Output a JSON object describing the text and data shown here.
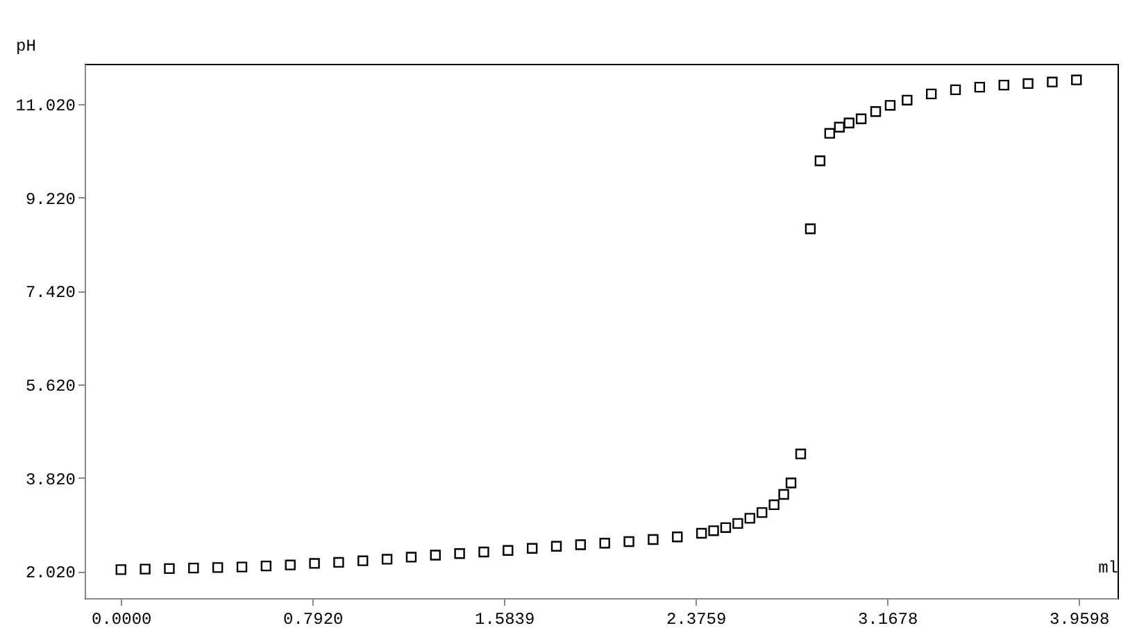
{
  "chart_data": {
    "type": "scatter",
    "xlabel": "ml",
    "ylabel": "pH",
    "marker": "square",
    "color": "#000000",
    "xlim": [
      -0.15,
      4.12
    ],
    "ylim": [
      1.5,
      11.8
    ],
    "xticks": [
      {
        "value": 0,
        "label": "0.0000"
      },
      {
        "value": 0.792,
        "label": "0.7920"
      },
      {
        "value": 1.5839,
        "label": "1.5839"
      },
      {
        "value": 2.3759,
        "label": "2.3759"
      },
      {
        "value": 3.1678,
        "label": "3.1678"
      },
      {
        "value": 3.9598,
        "label": "3.9598"
      }
    ],
    "yticks": [
      {
        "value": 2.02,
        "label": "2.020"
      },
      {
        "value": 3.82,
        "label": "3.820"
      },
      {
        "value": 5.62,
        "label": "5.620"
      },
      {
        "value": 7.42,
        "label": "7.420"
      },
      {
        "value": 9.22,
        "label": "9.220"
      },
      {
        "value": 11.02,
        "label": "11.020"
      }
    ],
    "x": [
      0.0,
      0.1,
      0.2,
      0.3,
      0.4,
      0.5,
      0.6,
      0.7,
      0.8,
      0.9,
      1.0,
      1.1,
      1.2,
      1.3,
      1.4,
      1.5,
      1.6,
      1.7,
      1.8,
      1.9,
      2.0,
      2.1,
      2.2,
      2.3,
      2.4,
      2.45,
      2.5,
      2.55,
      2.6,
      2.65,
      2.7,
      2.74,
      2.77,
      2.81,
      2.85,
      2.89,
      2.93,
      2.97,
      3.01,
      3.06,
      3.12,
      3.18,
      3.25,
      3.35,
      3.45,
      3.55,
      3.65,
      3.75,
      3.85,
      3.95
    ],
    "values": [
      2.05,
      2.06,
      2.07,
      2.08,
      2.09,
      2.1,
      2.12,
      2.14,
      2.17,
      2.19,
      2.22,
      2.25,
      2.29,
      2.33,
      2.36,
      2.39,
      2.42,
      2.46,
      2.5,
      2.53,
      2.56,
      2.59,
      2.63,
      2.68,
      2.75,
      2.8,
      2.86,
      2.94,
      3.04,
      3.15,
      3.3,
      3.5,
      3.72,
      4.28,
      8.62,
      9.93,
      10.46,
      10.58,
      10.66,
      10.74,
      10.88,
      11.0,
      11.1,
      11.22,
      11.3,
      11.35,
      11.39,
      11.42,
      11.45,
      11.49
    ]
  }
}
